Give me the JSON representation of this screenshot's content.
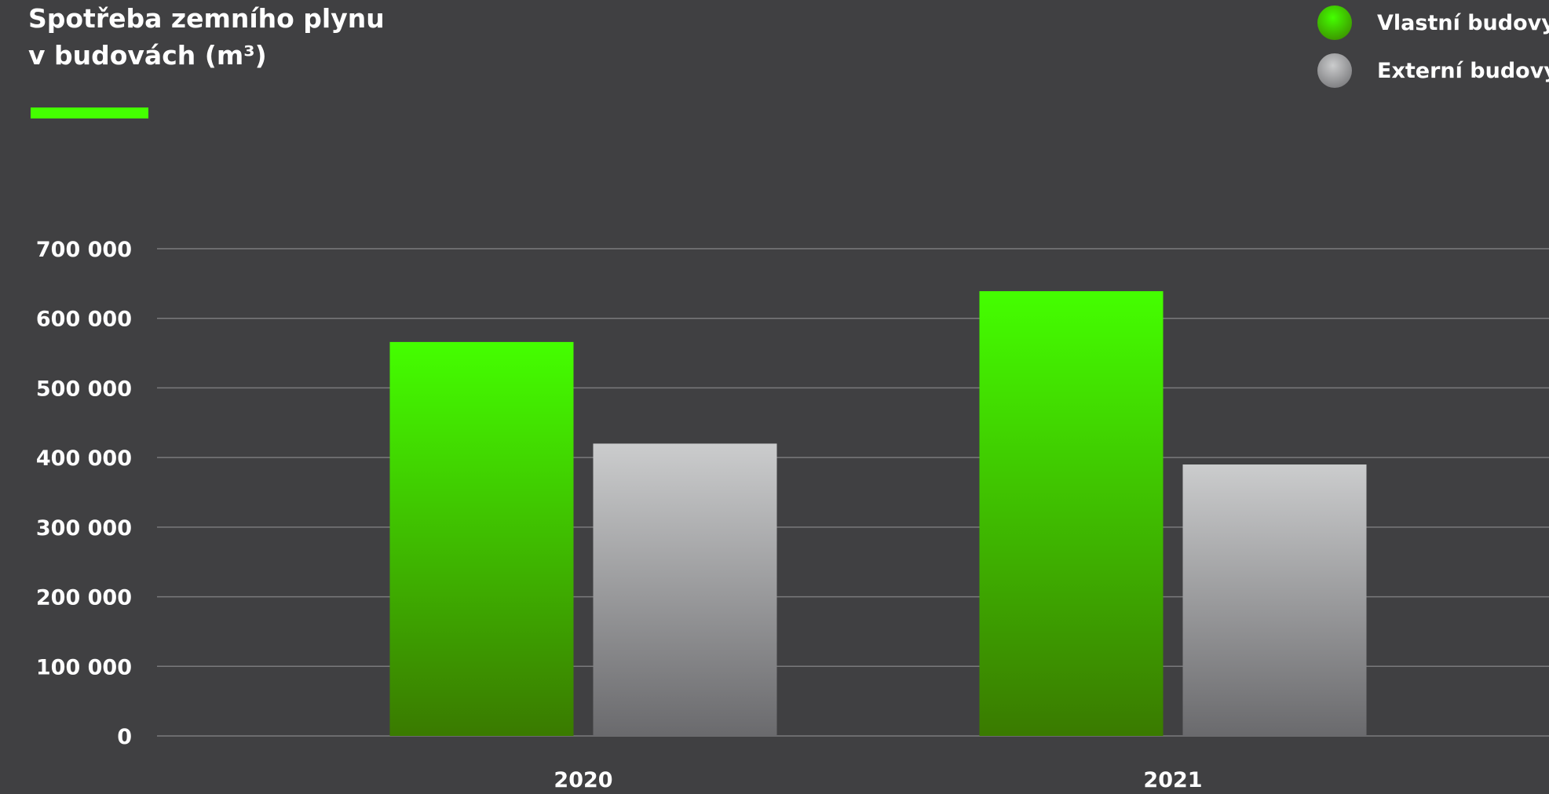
{
  "title_lines": [
    "Spotřeba zemního plynu",
    "v budovách (m³)"
  ],
  "colors": {
    "background": "#404042",
    "accent": "#44ff00",
    "gridline": "#7a7a7c",
    "series_own_top": "#44ff00",
    "series_own_bottom": "#3a7a00",
    "series_ext_top": "#cbcccd",
    "series_ext_bottom": "#6a6a6d"
  },
  "chart_data": {
    "type": "bar",
    "title": "Spotřeba zemního plynu v budovách (m³)",
    "categories": [
      "2020",
      "2021"
    ],
    "series": [
      {
        "name": "Vlastní budovy",
        "values": [
          566000,
          639000
        ]
      },
      {
        "name": "Externí budovy",
        "values": [
          420000,
          390000
        ]
      }
    ],
    "ylim": [
      0,
      700000
    ],
    "yticks": [
      0,
      100000,
      200000,
      300000,
      400000,
      500000,
      600000,
      700000
    ],
    "ytick_labels": [
      "0",
      "100 000",
      "200 000",
      "300 000",
      "400 000",
      "500 000",
      "600 000",
      "700 000"
    ],
    "grid": true,
    "legend_position": "top-right"
  }
}
